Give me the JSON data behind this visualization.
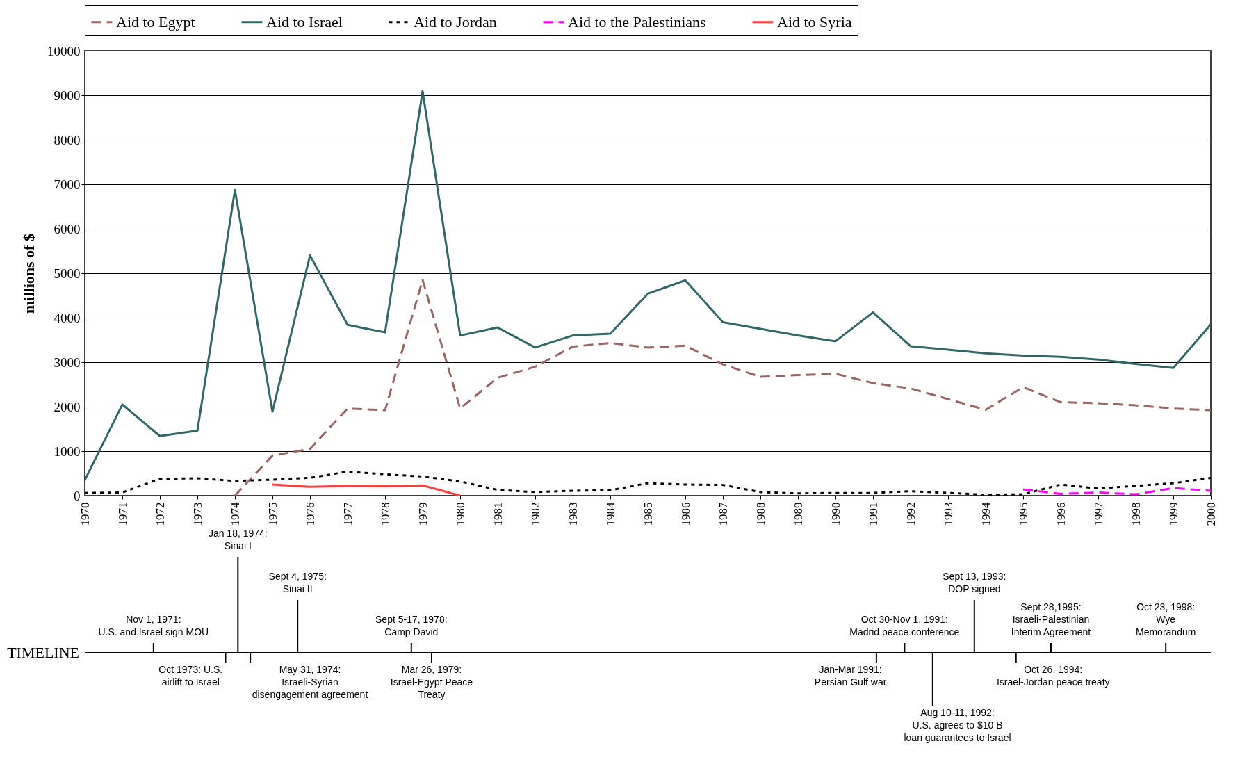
{
  "chart_data": {
    "type": "line",
    "ylabel": "millions of $",
    "x": [
      1970,
      1971,
      1972,
      1973,
      1974,
      1975,
      1976,
      1977,
      1978,
      1979,
      1980,
      1981,
      1982,
      1983,
      1984,
      1985,
      1986,
      1987,
      1988,
      1989,
      1990,
      1991,
      1992,
      1993,
      1994,
      1995,
      1996,
      1997,
      1998,
      1999,
      2000
    ],
    "series": [
      {
        "name": "Aid to Egypt",
        "color": "#996666",
        "line_style": "dashed",
        "x": [
          1974,
          1975,
          1976,
          1977,
          1978,
          1979,
          1980,
          1981,
          1982,
          1983,
          1984,
          1985,
          1986,
          1987,
          1988,
          1989,
          1990,
          1991,
          1992,
          1993,
          1994,
          1995,
          1996,
          1997,
          1998,
          1999,
          2000
        ],
        "values": [
          0,
          900,
          1050,
          1960,
          1920,
          4850,
          1960,
          2650,
          2900,
          3350,
          3430,
          3330,
          3370,
          2950,
          2670,
          2710,
          2740,
          2530,
          2410,
          2170,
          1930,
          2440,
          2100,
          2080,
          2030,
          1960,
          1920
        ]
      },
      {
        "name": "Aid to Israel",
        "color": "#336666",
        "line_style": "solid",
        "values": [
          350,
          2050,
          1340,
          1460,
          6870,
          1890,
          5400,
          3840,
          3670,
          9090,
          3600,
          3780,
          3330,
          3600,
          3640,
          4540,
          4840,
          3900,
          3750,
          3600,
          3470,
          4120,
          3360,
          3280,
          3200,
          3150,
          3120,
          3060,
          2960,
          2870,
          3850
        ]
      },
      {
        "name": "Aid to Jordan",
        "color": "#000000",
        "line_style": "dotted",
        "values": [
          60,
          70,
          380,
          390,
          330,
          360,
          400,
          540,
          480,
          430,
          320,
          130,
          80,
          110,
          120,
          280,
          250,
          240,
          80,
          50,
          60,
          60,
          100,
          60,
          20,
          30,
          250,
          160,
          220,
          280,
          400
        ]
      },
      {
        "name": "Aid to the Palestinians",
        "color": "#ff00ff",
        "line_style": "dashed",
        "x": [
          1995,
          1996,
          1997,
          1998,
          1999,
          2000
        ],
        "values": [
          140,
          40,
          70,
          30,
          170,
          110
        ]
      },
      {
        "name": "Aid to Syria",
        "color": "#ff4040",
        "line_style": "solid",
        "x": [
          1975,
          1976,
          1977,
          1978,
          1979,
          1980
        ],
        "values": [
          250,
          200,
          220,
          210,
          230,
          0
        ]
      }
    ],
    "xlim": [
      1970,
      2000
    ],
    "xticks": [
      1970,
      1971,
      1972,
      1973,
      1974,
      1975,
      1976,
      1977,
      1978,
      1979,
      1980,
      1981,
      1982,
      1983,
      1984,
      1985,
      1986,
      1987,
      1988,
      1989,
      1990,
      1991,
      1992,
      1993,
      1994,
      1995,
      1996,
      1997,
      1998,
      1999,
      2000
    ],
    "ylim": [
      0,
      10000
    ],
    "yticks": [
      0,
      1000,
      2000,
      3000,
      4000,
      5000,
      6000,
      7000,
      8000,
      9000,
      10000
    ],
    "grid": "y",
    "legend": "top",
    "annotations": [
      "TIMELINE",
      "Nov 1, 1971:\nU.S. and Israel sign MOU",
      "Oct 1973: U.S.\nairlift to Israel",
      "Jan 18, 1974:\nSinai I",
      "May 31, 1974:\nIsraeli-Syrian\ndisengagement agreement",
      "Sept 4, 1975:\nSinai II",
      "Sept 5-17, 1978:\nCamp David",
      "Mar 26, 1979:\nIsrael-Egypt Peace\nTreaty",
      "Jan-Mar 1991:\nPersian Gulf war",
      "Oct 30-Nov 1, 1991:\nMadrid peace conference",
      "Aug 10-11, 1992:\nU.S. agrees to $10 B\nloan guarantees to Israel",
      "Sept 13, 1993:\nDOP signed",
      "Oct 26, 1994:\nIsrael-Jordan peace treaty",
      "Sept 28,1995:\nIsraeli-Palestinian\nInterim Agreement",
      "Oct 23, 1998:\nWye\nMemorandum"
    ]
  }
}
